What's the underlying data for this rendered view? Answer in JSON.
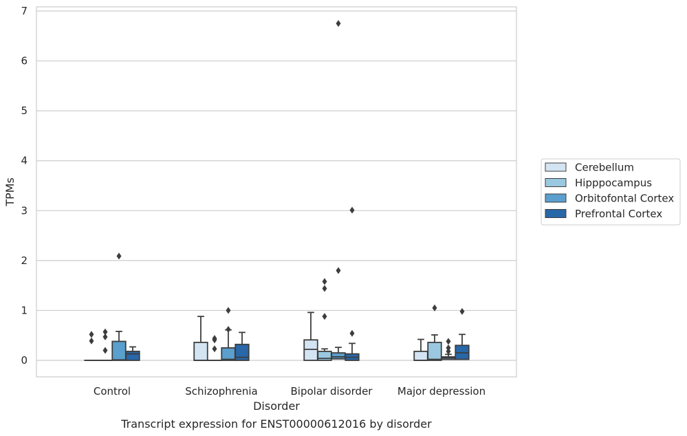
{
  "chart_data": {
    "type": "box",
    "caption": "Transcript expression for ENST00000612016 by disorder",
    "xlabel": "Disorder",
    "ylabel": "TPMs",
    "ylim": [
      -0.33,
      7.1
    ],
    "yticks": [
      0,
      1,
      2,
      3,
      4,
      5,
      6,
      7
    ],
    "grid": "horizontal",
    "legend_position": "right",
    "categories": [
      "Control",
      "Schizophrenia",
      "Bipolar disorder",
      "Major depression"
    ],
    "series": [
      {
        "name": "Cerebellum",
        "color": "#d3e4f3",
        "boxes": [
          {
            "whislo": 0,
            "q1": 0,
            "med": 0,
            "q3": 0,
            "whishi": 0,
            "fliers": [
              0.39,
              0.52
            ]
          },
          {
            "whislo": 0,
            "q1": 0,
            "med": 0,
            "q3": 0.36,
            "whishi": 0.88,
            "fliers": []
          },
          {
            "whislo": 0,
            "q1": 0,
            "med": 0.22,
            "q3": 0.41,
            "whislo_": 0,
            "whishi": 0.96,
            "fliers": []
          },
          {
            "whislo": 0,
            "q1": 0,
            "med": 0,
            "q3": 0.18,
            "whishi": 0.42,
            "fliers": []
          }
        ]
      },
      {
        "name": "Hipppocampus",
        "color": "#9ac8e0",
        "boxes": [
          {
            "whislo": 0,
            "q1": 0,
            "med": 0,
            "q3": 0,
            "whishi": 0,
            "fliers": [
              0.2,
              0.47,
              0.57
            ]
          },
          {
            "whislo": 0,
            "q1": 0,
            "med": 0,
            "q3": 0,
            "whishi": 0,
            "fliers": [
              0.23,
              0.41,
              0.44
            ]
          },
          {
            "whislo": 0,
            "q1": 0,
            "med": 0.04,
            "q3": 0.18,
            "whishi": 0.23,
            "fliers": [
              0.88,
              1.44,
              1.58
            ]
          },
          {
            "whislo": 0,
            "q1": 0,
            "med": 0.02,
            "q3": 0.36,
            "whishi": 0.51,
            "fliers": [
              1.05
            ]
          }
        ]
      },
      {
        "name": "Orbitofontal Cortex",
        "color": "#5a9fcd",
        "boxes": [
          {
            "whislo": 0,
            "q1": 0,
            "med": 0.01,
            "q3": 0.38,
            "whishi": 0.58,
            "fliers": [
              2.09
            ]
          },
          {
            "whislo": 0,
            "q1": 0,
            "med": 0.02,
            "q3": 0.25,
            "whishi": 0.61,
            "fliers": [
              0.62,
              1.0
            ]
          },
          {
            "whislo": 0,
            "q1": 0.03,
            "med": 0.07,
            "q3": 0.15,
            "whishi": 0.26,
            "fliers": [
              1.8,
              6.75
            ]
          },
          {
            "whislo": 0,
            "q1": 0.02,
            "med": 0.05,
            "q3": 0.07,
            "whishi": 0.12,
            "fliers": [
              0.18,
              0.25,
              0.38
            ]
          }
        ]
      },
      {
        "name": "Prefrontal Cortex",
        "color": "#2867a8",
        "boxes": [
          {
            "whislo": 0,
            "q1": 0,
            "med": 0.13,
            "q3": 0.18,
            "whishi": 0.27,
            "fliers": []
          },
          {
            "whislo": 0,
            "q1": 0,
            "med": 0.06,
            "q3": 0.32,
            "whishi": 0.56,
            "fliers": []
          },
          {
            "whislo": 0,
            "q1": 0,
            "med": 0.06,
            "q3": 0.13,
            "whishi": 0.34,
            "fliers": [
              0.54,
              3.01
            ]
          },
          {
            "whislo": 0,
            "q1": 0.02,
            "med": 0.15,
            "q3": 0.3,
            "whishi": 0.52,
            "fliers": [
              0.98
            ]
          }
        ]
      }
    ]
  }
}
